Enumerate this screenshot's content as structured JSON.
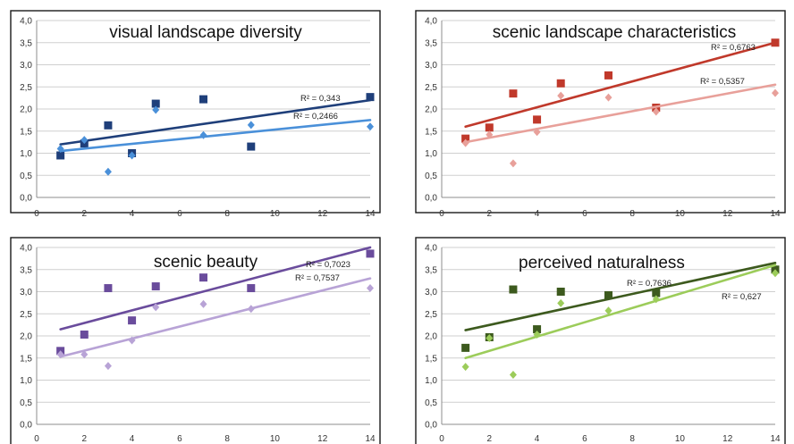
{
  "chart_data": [
    {
      "type": "scatter",
      "title": "visual landscape diversity",
      "xlim": [
        0,
        14
      ],
      "ylim": [
        0,
        4
      ],
      "xticks": [
        "0",
        "2",
        "4",
        "6",
        "8",
        "10",
        "12",
        "14"
      ],
      "yticks": [
        "0,0",
        "0,5",
        "1,0",
        "1,5",
        "2,0",
        "2,5",
        "3,0",
        "3,5",
        "4,0"
      ],
      "grid": "horizontal",
      "series": [
        {
          "marker": "square",
          "color": "#1f3f7a",
          "x": [
            1,
            2,
            3,
            4,
            5,
            7,
            9,
            14
          ],
          "y": [
            0.95,
            1.22,
            1.63,
            1.0,
            2.12,
            2.22,
            1.15,
            2.27
          ],
          "trendline": [
            [
              1,
              1.2
            ],
            [
              14,
              2.2
            ]
          ],
          "r2": "R² = 0,343"
        },
        {
          "marker": "diamond",
          "color": "#4a90d9",
          "x": [
            1,
            2,
            3,
            4,
            5,
            7,
            9,
            14
          ],
          "y": [
            1.1,
            1.3,
            0.58,
            0.95,
            1.98,
            1.41,
            1.64,
            1.6
          ],
          "trendline": [
            [
              1,
              1.05
            ],
            [
              14,
              1.75
            ]
          ],
          "r2": "R² = 0,2466"
        }
      ]
    },
    {
      "type": "scatter",
      "title": "scenic landscape characteristics",
      "xlim": [
        0,
        14
      ],
      "ylim": [
        0,
        4
      ],
      "xticks": [
        "0",
        "2",
        "4",
        "6",
        "8",
        "10",
        "12",
        "14"
      ],
      "yticks": [
        "0,0",
        "0,5",
        "1,0",
        "1,5",
        "2,0",
        "2,5",
        "3,0",
        "3,5",
        "4,0"
      ],
      "grid": "horizontal",
      "series": [
        {
          "marker": "square",
          "color": "#c0392b",
          "x": [
            1,
            2,
            3,
            4,
            5,
            7,
            9,
            14
          ],
          "y": [
            1.33,
            1.58,
            2.35,
            1.76,
            2.58,
            2.76,
            2.03,
            3.5
          ],
          "trendline": [
            [
              1,
              1.6
            ],
            [
              14,
              3.5
            ]
          ],
          "r2": "R² = 0,6763"
        },
        {
          "marker": "diamond",
          "color": "#e8a09a",
          "x": [
            1,
            2,
            3,
            4,
            5,
            7,
            9,
            14
          ],
          "y": [
            1.23,
            1.42,
            0.77,
            1.48,
            2.3,
            2.26,
            1.94,
            2.36
          ],
          "trendline": [
            [
              1,
              1.25
            ],
            [
              14,
              2.55
            ]
          ],
          "r2": "R² = 0,5357"
        }
      ]
    },
    {
      "type": "scatter",
      "title": "scenic beauty",
      "xlim": [
        0,
        14
      ],
      "ylim": [
        0,
        4
      ],
      "xticks": [
        "0",
        "2",
        "4",
        "6",
        "8",
        "10",
        "12",
        "14"
      ],
      "yticks": [
        "0,0",
        "0,5",
        "1,0",
        "1,5",
        "2,0",
        "2,5",
        "3,0",
        "3,5",
        "4,0"
      ],
      "grid": "horizontal",
      "series": [
        {
          "marker": "square",
          "color": "#6a4c9c",
          "x": [
            1,
            2,
            3,
            4,
            5,
            7,
            9,
            14
          ],
          "y": [
            1.66,
            2.03,
            3.08,
            2.35,
            3.12,
            3.32,
            3.08,
            3.86
          ],
          "trendline": [
            [
              1,
              2.15
            ],
            [
              14,
              4.0
            ]
          ],
          "r2": "R² = 0,7023"
        },
        {
          "marker": "diamond",
          "color": "#b8a3d6",
          "x": [
            1,
            2,
            3,
            4,
            5,
            7,
            9,
            14
          ],
          "y": [
            1.58,
            1.58,
            1.32,
            1.9,
            2.65,
            2.72,
            2.61,
            3.08
          ],
          "trendline": [
            [
              1,
              1.53
            ],
            [
              14,
              3.3
            ]
          ],
          "r2": "R² = 0,7537"
        }
      ]
    },
    {
      "type": "scatter",
      "title": "perceived naturalness",
      "xlim": [
        0,
        14
      ],
      "ylim": [
        0,
        4
      ],
      "xticks": [
        "0",
        "2",
        "4",
        "6",
        "8",
        "10",
        "12",
        "14"
      ],
      "yticks": [
        "0,0",
        "0,5",
        "1,0",
        "1,5",
        "2,0",
        "2,5",
        "3,0",
        "3,5",
        "4,0"
      ],
      "grid": "horizontal",
      "series": [
        {
          "marker": "square",
          "color": "#3d5a1e",
          "x": [
            1,
            2,
            3,
            4,
            5,
            7,
            9,
            14
          ],
          "y": [
            1.73,
            1.97,
            3.05,
            2.15,
            3.0,
            2.92,
            2.97,
            3.5
          ],
          "trendline": [
            [
              1,
              2.13
            ],
            [
              14,
              3.65
            ]
          ],
          "r2": "R² = 0,7636"
        },
        {
          "marker": "diamond",
          "color": "#9ccc5a",
          "x": [
            1,
            2,
            3,
            4,
            5,
            7,
            9,
            14
          ],
          "y": [
            1.3,
            1.95,
            1.12,
            2.03,
            2.74,
            2.57,
            2.83,
            3.42
          ],
          "trendline": [
            [
              1,
              1.5
            ],
            [
              14,
              3.6
            ]
          ],
          "r2": "R² = 0,627"
        }
      ]
    }
  ]
}
